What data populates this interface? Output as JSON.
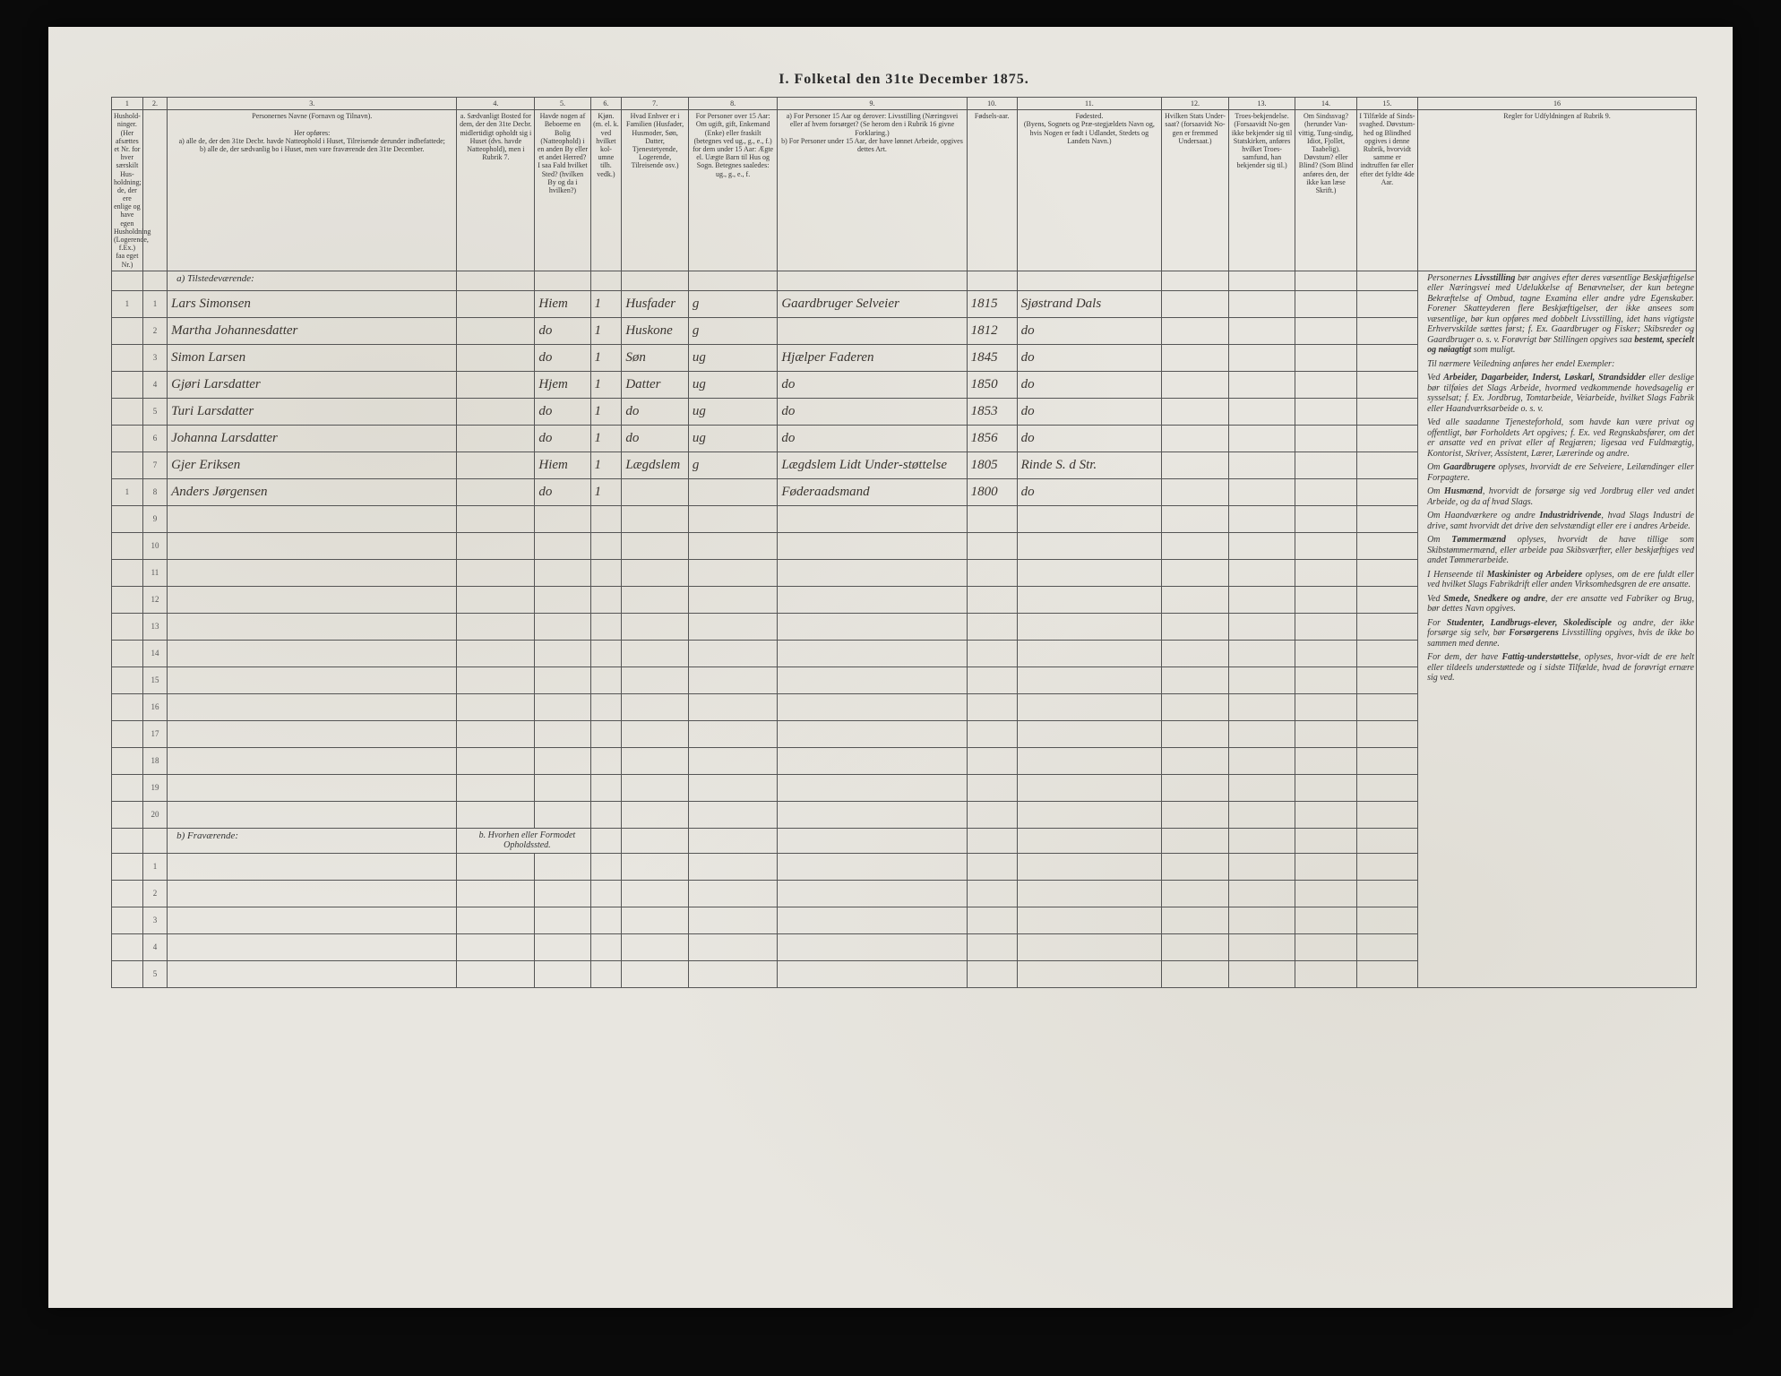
{
  "title": "I. Folketal den 31te December 1875.",
  "colnums": [
    "1",
    "2.",
    "3.",
    "4.",
    "5.",
    "6.",
    "7.",
    "8.",
    "9.",
    "10.",
    "11.",
    "12.",
    "13.",
    "14.",
    "15.",
    "16"
  ],
  "headers": {
    "c1": "Hushold-ninger. (Her afsættes et Nr. for hver særskilt Hus-holdning; de, der ere enlige og have egen Husholdning (Logerende, f.Ex.) faa eget Nr.)",
    "c2": "",
    "c3": "Personernes Navne (Fornavn og Tilnavn).\n\nHer opføres:\na) alle de, der den 31te Decbr. havde Natteophold i Huset, Tilreisende derunder indbefattede;\nb) alle de, der sædvanlig bo i Huset, men vare fraværende den 31te December.",
    "c4": "a. Sædvanligt Bosted for dem, der den 31te Decbr. midlertidigt opholdt sig i Huset (dvs. havde Natteophold), men i Rubrik 7.",
    "c5": "Havde nogen af Beboerne en Bolig (Natteophold) i en anden By eller et andet Herred? I saa Fald hvilket Sted? (hvilken By og da i hvilken?)",
    "c6": "Kjøn. (m. el. k. ved hvilket kol-umne tilh. vedk.)",
    "c7": "Hvad Enhver er i Familien (Husfader, Husmoder, Søn, Datter, Tjenestetyende, Logerende, Tilreisende osv.)",
    "c8": "For Personer over 15 Aar: Om ugift, gift, Enkemand (Enke) eller fraskilt (betegnes ved ug., g., e., f.) for dem under 15 Aar: Ægte el. Uægte Barn til Hus og Sogn. Betegnes saaledes: ug., g., e., f.",
    "c9": "a) For Personer 15 Aar og derover: Livsstilling (Næringsvei eller af hvem forsørget? (Se herom den i Rubrik 16 givne Forklaring.)\nb) For Personer under 15 Aar, der have lønnet Arbeide, opgives dettes Art.",
    "c10": "Fødsels-aar.",
    "c11": "Fødested.\n(Byens, Sognets og Præ-stegjældets Navn og, hvis Nogen er født i Udlandet, Stedets og Landets Navn.)",
    "c12": "Hvilken Stats Under-saat? (forsaavidt No-gen er fremmed Undersaat.)",
    "c13": "Troes-bekjendelse. (Forsaavidt No-gen ikke bekjender sig til Statskirken, anføres hvilket Troes-samfund, han bekjender sig til.)",
    "c14": "Om Sindssvag? (herunder Van-vittig, Tung-sindig, Idiot, Fjollet, Taabelig). Døvstum? eller Blind? (Som Blind anføres den, der ikke kan læse Skrift.)",
    "c15": "I Tilfælde af Sinds-svaghed. Døvstum-hed og Blindhed opgives i denne Rubrik, hvorvidt samme er indtruffen før eller efter det fyldte 4de Aar.",
    "c16": "Regler for Udfyldningen af Rubrik 9."
  },
  "section_a": "a) Tilstedeværende:",
  "section_b": "b) Fraværende:",
  "absent_header_c4": "b. Hvorhen eller Formodet Opholdssted.",
  "rows": [
    {
      "n1": "1",
      "n2": "1",
      "name": "Lars Simonsen",
      "c4": "",
      "c5": "Hiem",
      "c6": "1",
      "c7": "Husfader",
      "c8": "g",
      "c9": "Gaardbruger Selveier",
      "c10": "1815",
      "c11": "Sjøstrand Dals"
    },
    {
      "n1": "",
      "n2": "2",
      "name": "Martha Johannesdatter",
      "c4": "",
      "c5": "do",
      "c6": "1",
      "c7": "Huskone",
      "c8": "g",
      "c9": "",
      "c10": "1812",
      "c11": "do"
    },
    {
      "n1": "",
      "n2": "3",
      "name": "Simon Larsen",
      "c4": "",
      "c5": "do",
      "c6": "1",
      "c7": "Søn",
      "c8": "ug",
      "c9": "Hjælper Faderen",
      "c10": "1845",
      "c11": "do"
    },
    {
      "n1": "",
      "n2": "4",
      "name": "Gjøri Larsdatter",
      "c4": "",
      "c5": "Hjem",
      "c6": "1",
      "c7": "Datter",
      "c8": "ug",
      "c9": "do",
      "c10": "1850",
      "c11": "do"
    },
    {
      "n1": "",
      "n2": "5",
      "name": "Turi Larsdatter",
      "c4": "",
      "c5": "do",
      "c6": "1",
      "c7": "do",
      "c8": "ug",
      "c9": "do",
      "c10": "1853",
      "c11": "do"
    },
    {
      "n1": "",
      "n2": "6",
      "name": "Johanna Larsdatter",
      "c4": "",
      "c5": "do",
      "c6": "1",
      "c7": "do",
      "c8": "ug",
      "c9": "do",
      "c10": "1856",
      "c11": "do"
    },
    {
      "n1": "",
      "n2": "7",
      "name": "Gjer Eriksen",
      "c4": "",
      "c5": "Hiem",
      "c6": "1",
      "c7": "Lægdslem",
      "c8": "g",
      "c9": "Lægdslem Lidt Under-støttelse",
      "c10": "1805",
      "c11": "Rinde S. d Str."
    },
    {
      "n1": "1",
      "n2": "8",
      "name": "Anders Jørgensen",
      "c4": "",
      "c5": "do",
      "c6": "1",
      "c7": "",
      "c8": "",
      "c9": "Føderaadsmand",
      "c10": "1800",
      "c11": "do"
    }
  ],
  "empty_present": [
    9,
    10,
    11,
    12,
    13,
    14,
    15,
    16,
    17,
    18,
    19,
    20
  ],
  "empty_absent": [
    1,
    2,
    3,
    4,
    5
  ],
  "instructions_paras": [
    "Personernes <b>Livsstilling</b> bør angives efter deres væsentlige Beskjæftigelse eller Næringsvei med Udelukkelse af Benævnelser, der kun betegne Bekræftelse af Ombud, tagne Examina eller andre ydre Egenskaber. Forener Skatteyderen flere Beskjæftigelser, der ikke ansees som væsentlige, bør kun opføres med dobbelt Livsstilling, idet hans vigtigste Erhvervskilde sættes først; f. Ex. Gaardbruger og Fisker; Skibsreder og Gaardbruger o. s. v. Forøvrigt bør Stillingen opgives saa <b>bestemt, specielt og nøiagtigt</b> som muligt.",
    "Til nærmere Veiledning anføres her endel Exempler:",
    "Ved <b>Arbeider, Dagarbeider, Inderst, Løskarl, Strandsidder</b> eller deslige bør tilføies det Slags Arbeide, hvormed vedkommende hovedsagelig er sysselsat; f. Ex. Jordbrug, Tomtarbeide, Veiarbeide, hvilket Slags Fabrik eller Haandværksarbeide o. s. v.",
    "Ved alle saadanne Tjenesteforhold, som havde kan være privat og offentligt, bør Forholdets Art opgives; f. Ex. ved Regnskabsfører, om det er ansatte ved en privat eller af Regjæren; ligesaa ved Fuldmægtig, Kontorist, Skriver, Assistent, Lærer, Lærerinde og andre.",
    "Om <b>Gaardbrugere</b> oplyses, hvorvidt de ere Selveiere, Leilændinger eller Forpagtere.",
    "Om <b>Husmænd</b>, hvorvidt de forsørge sig ved Jordbrug eller ved andet Arbeide, og da af hvad Slags.",
    "Om Haandværkere og andre <b>Industridrivende</b>, hvad Slags Industri de drive, samt hvorvidt det drive den selvstændigt eller ere i andres Arbeide.",
    "Om <b>Tømmermænd</b> oplyses, hvorvidt de have tillige som Skibstømmermænd, eller arbeide paa Skibsværfter, eller beskjæftiges ved andet Tømmerarbeide.",
    "I Henseende til <b>Maskinister og Arbeidere</b> oplyses, om de ere fuldt eller ved hvilket Slags Fabrikdrift eller anden Virksomhedsgren de ere ansatte.",
    "Ved <b>Smede, Snedkere og andre</b>, der ere ansatte ved Fabriker og Brug, bør dettes Navn opgives.",
    "For <b>Studenter, Landbrugs-elever, Skoledisciple</b> og andre, der ikke forsørge sig selv, bør <b>Forsørgerens</b> Livsstilling opgives, hvis de ikke bo sammen med denne.",
    "For dem, der have <b>Fattig-understøttelse</b>, oplyses, hvor-vidt de ere helt eller tildeels understøttede og i sidste Tilfælde, hvad de forøvrigt ernære sig ved."
  ]
}
